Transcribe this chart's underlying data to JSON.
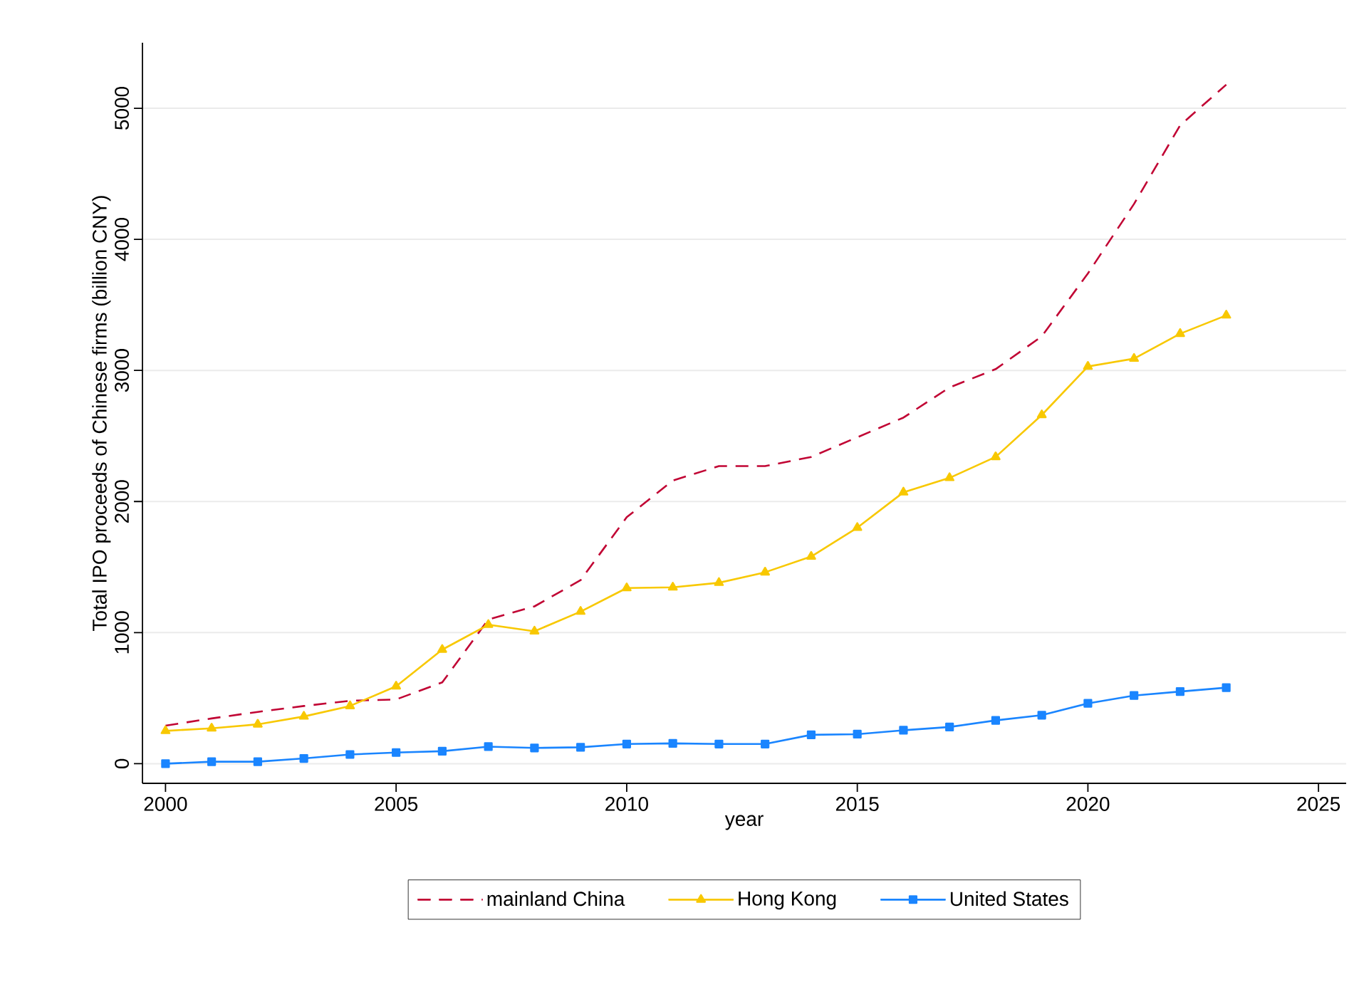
{
  "chart_data": {
    "type": "line",
    "xlabel": "year",
    "ylabel": "Total IPO proceeds of Chinese firms (billion CNY)",
    "x": [
      2000,
      2001,
      2002,
      2003,
      2004,
      2005,
      2006,
      2007,
      2008,
      2009,
      2010,
      2011,
      2012,
      2013,
      2014,
      2015,
      2016,
      2017,
      2018,
      2019,
      2020,
      2021,
      2022,
      2023
    ],
    "series": [
      {
        "name": "mainland China",
        "color": "#c10534",
        "line_style": "dashed",
        "marker": "none",
        "values": [
          290,
          345,
          395,
          440,
          480,
          490,
          620,
          1100,
          1200,
          1400,
          1880,
          2160,
          2270,
          2270,
          2340,
          2490,
          2640,
          2870,
          3010,
          3260,
          3740,
          4270,
          4870,
          5180
        ]
      },
      {
        "name": "Hong Kong",
        "color": "#f8c800",
        "line_style": "solid",
        "marker": "triangle",
        "values": [
          250,
          270,
          300,
          360,
          440,
          590,
          870,
          1060,
          1010,
          1160,
          1340,
          1345,
          1380,
          1460,
          1580,
          1800,
          2070,
          2180,
          2340,
          2660,
          3030,
          3090,
          3280,
          3420
        ]
      },
      {
        "name": "United States",
        "color": "#1a85ff",
        "line_style": "solid",
        "marker": "square",
        "values": [
          0,
          15,
          15,
          40,
          70,
          85,
          95,
          130,
          120,
          125,
          150,
          155,
          150,
          150,
          220,
          225,
          255,
          280,
          330,
          370,
          460,
          520,
          550,
          580
        ]
      }
    ],
    "xlim": [
      1999.5,
      2025.6
    ],
    "xticks": [
      2000,
      2005,
      2010,
      2015,
      2020,
      2025
    ],
    "ylim": [
      -150,
      5500
    ],
    "yticks": [
      0,
      1000,
      2000,
      3000,
      4000,
      5000
    ],
    "grid": "y",
    "legend": "bottom"
  }
}
